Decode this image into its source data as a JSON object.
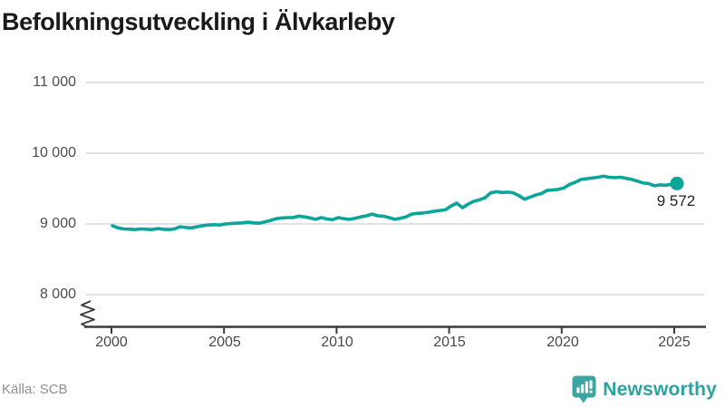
{
  "header": {
    "title": "Befolkningsutveckling i Älvkarleby"
  },
  "chart_data": {
    "type": "line",
    "title": "Befolkningsutveckling i Älvkarleby",
    "xlabel": "",
    "ylabel": "",
    "x_start": 2000,
    "x_step_years": 0.25,
    "x_end": 2025,
    "ylim": [
      8000,
      11000
    ],
    "axis_break": true,
    "grid": "horizontal",
    "legend": "none",
    "line_color": "#0ca59a",
    "xticks": [
      2000,
      2005,
      2010,
      2015,
      2020,
      2025
    ],
    "xtick_labels": [
      "2000",
      "2005",
      "2010",
      "2015",
      "2020",
      "2025"
    ],
    "yticks": [
      11000,
      10000,
      9000,
      8000
    ],
    "ytick_labels": [
      "11 000",
      "10 000",
      "9 000",
      "8 000"
    ],
    "end_label": "9 572",
    "end_value": 9572,
    "series": [
      {
        "name": "Befolkning",
        "values": [
          8975,
          8945,
          8930,
          8925,
          8920,
          8930,
          8925,
          8920,
          8935,
          8925,
          8920,
          8930,
          8960,
          8950,
          8945,
          8960,
          8975,
          8985,
          8990,
          8985,
          9000,
          9005,
          9010,
          9015,
          9025,
          9015,
          9010,
          9030,
          9050,
          9075,
          9085,
          9090,
          9090,
          9110,
          9100,
          9085,
          9065,
          9090,
          9070,
          9060,
          9090,
          9075,
          9065,
          9080,
          9100,
          9115,
          9140,
          9115,
          9110,
          9090,
          9065,
          9080,
          9100,
          9140,
          9150,
          9155,
          9165,
          9180,
          9190,
          9200,
          9255,
          9295,
          9230,
          9280,
          9320,
          9340,
          9370,
          9440,
          9455,
          9445,
          9450,
          9440,
          9400,
          9350,
          9380,
          9410,
          9430,
          9475,
          9480,
          9490,
          9510,
          9560,
          9590,
          9630,
          9640,
          9650,
          9660,
          9675,
          9660,
          9655,
          9660,
          9645,
          9630,
          9605,
          9580,
          9570,
          9540,
          9552,
          9548,
          9560,
          9572
        ]
      }
    ]
  },
  "footer": {
    "source": "Källa: SCB",
    "brand": "Newsworthy"
  }
}
